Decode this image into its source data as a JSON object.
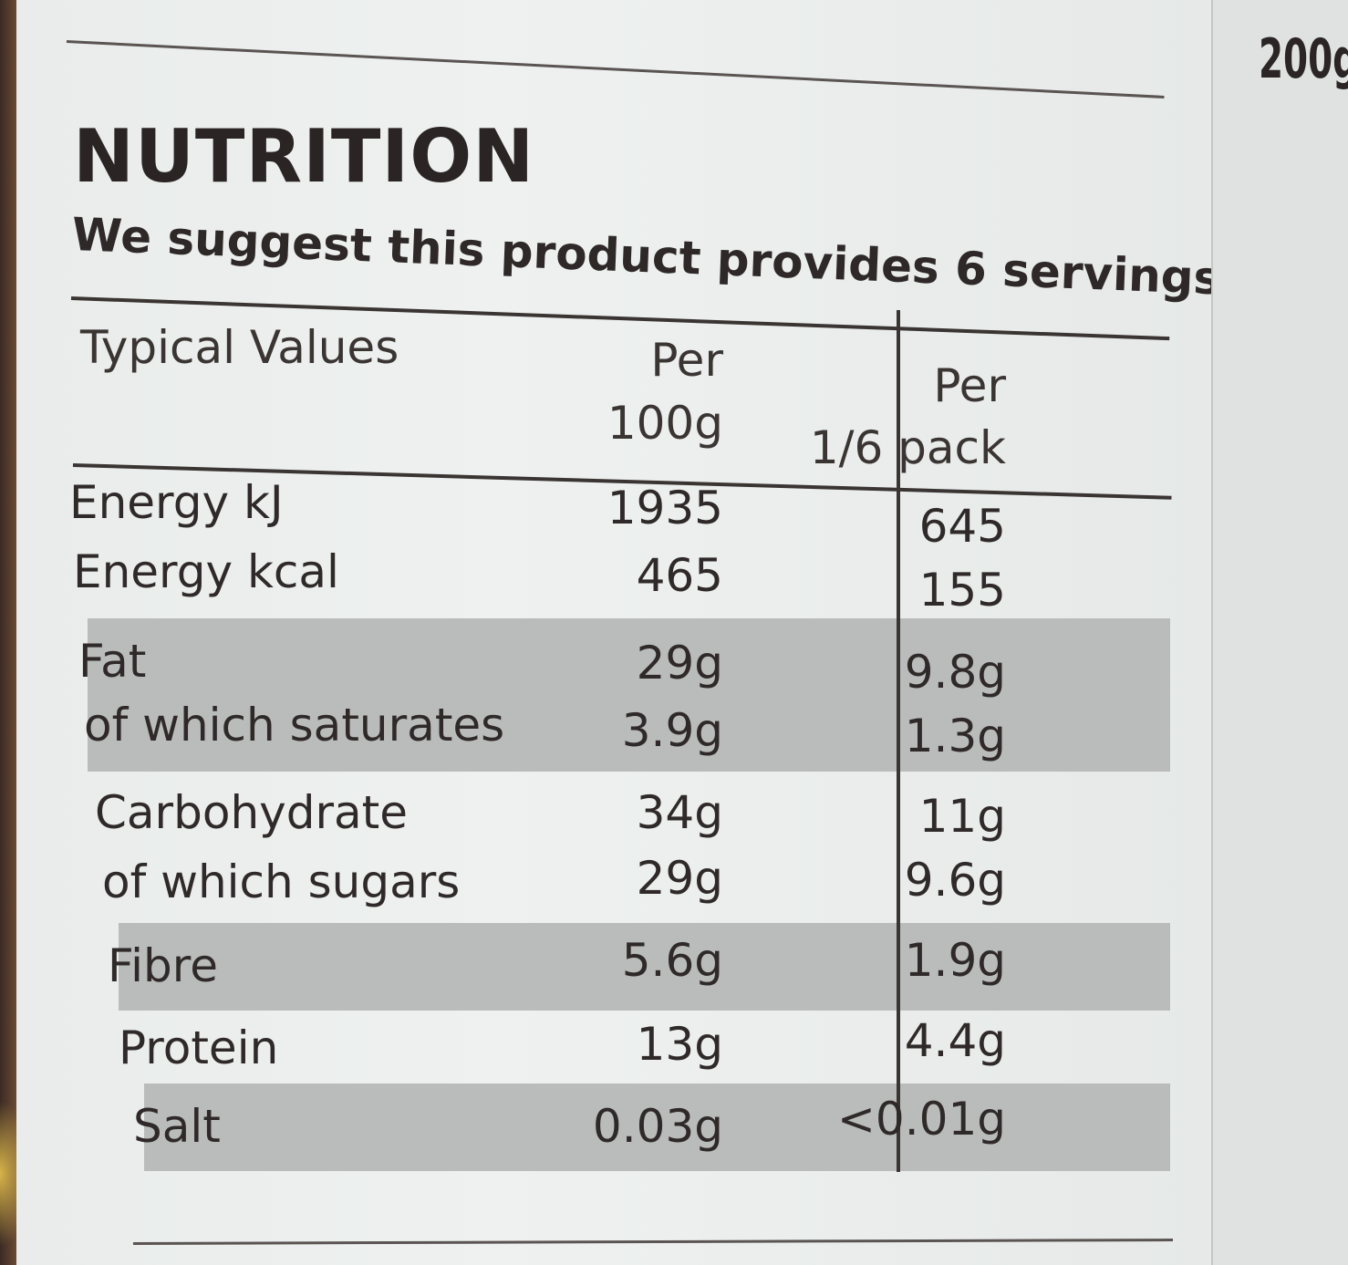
{
  "label": {
    "title": "NUTRITION",
    "subtitle": "We suggest this product provides 6 servings",
    "weight": "200g",
    "header": {
      "typical": "Typical Values",
      "col1_line1": "Per",
      "col1_line2": "100g",
      "col2_line1": "Per",
      "col2_line2": "1/6 pack"
    },
    "rows": [
      {
        "name": "Energy kJ",
        "per100": "1935",
        "perpack": "645"
      },
      {
        "name": "Energy kcal",
        "per100": "465",
        "perpack": "155"
      },
      {
        "name": "Fat",
        "per100": "29g",
        "perpack": "9.8g"
      },
      {
        "name": "of which saturates",
        "per100": "3.9g",
        "perpack": "1.3g"
      },
      {
        "name": "Carbohydrate",
        "per100": "34g",
        "perpack": "11g"
      },
      {
        "name": "of which sugars",
        "per100": "29g",
        "perpack": "9.6g"
      },
      {
        "name": "Fibre",
        "per100": "5.6g",
        "perpack": "1.9g"
      },
      {
        "name": "Protein",
        "per100": "13g",
        "perpack": "4.4g"
      },
      {
        "name": "Salt",
        "per100": "0.03g",
        "perpack": "<0.01g"
      }
    ]
  }
}
